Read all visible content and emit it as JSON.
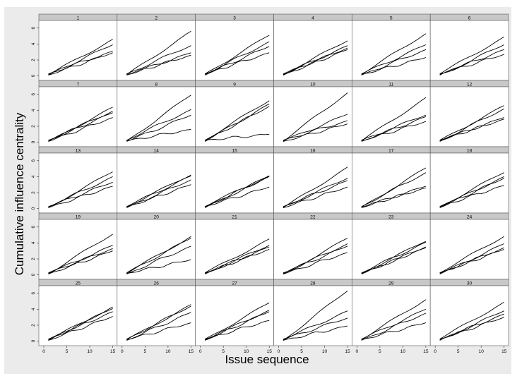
{
  "chart_data": {
    "type": "line",
    "layout": "small-multiples",
    "xlabel": "Issue sequence",
    "ylabel": "Cumulative influence centrality",
    "x": [
      1,
      2,
      3,
      4,
      5,
      6,
      7,
      8,
      9,
      10,
      11,
      12,
      13,
      14,
      15
    ],
    "xticks": [
      0,
      5,
      10,
      15
    ],
    "yticks": [
      0,
      2,
      4,
      6
    ],
    "xlim": [
      0,
      15.5
    ],
    "ylim": [
      -0.3,
      6.6
    ],
    "grid": false,
    "series_per_panel": 4,
    "panels": [
      {
        "label": "1",
        "series": [
          {
            "end": 4.6
          },
          {
            "end": 3.9
          },
          {
            "end": 3.1
          },
          {
            "end": 2.9
          }
        ]
      },
      {
        "label": "2",
        "series": [
          {
            "end": 5.6
          },
          {
            "end": 3.8
          },
          {
            "end": 2.9
          },
          {
            "end": 2.6
          }
        ]
      },
      {
        "label": "3",
        "series": [
          {
            "end": 5.1
          },
          {
            "end": 4.3
          },
          {
            "end": 3.7
          },
          {
            "end": 2.9
          }
        ]
      },
      {
        "label": "4",
        "series": [
          {
            "end": 4.4
          },
          {
            "end": 3.8
          },
          {
            "end": 3.5
          },
          {
            "end": 3.3
          }
        ]
      },
      {
        "label": "5",
        "series": [
          {
            "end": 5.3
          },
          {
            "end": 3.9
          },
          {
            "end": 3.3
          },
          {
            "end": 2.3
          }
        ]
      },
      {
        "label": "6",
        "series": [
          {
            "end": 4.9
          },
          {
            "end": 3.9
          },
          {
            "end": 3.3
          },
          {
            "end": 2.7
          }
        ]
      },
      {
        "label": "7",
        "series": [
          {
            "end": 4.4
          },
          {
            "end": 3.9
          },
          {
            "end": 3.7
          },
          {
            "end": 3.1
          }
        ]
      },
      {
        "label": "8",
        "series": [
          {
            "end": 5.9
          },
          {
            "end": 4.1
          },
          {
            "end": 3.4
          },
          {
            "end": 1.6
          }
        ]
      },
      {
        "label": "9",
        "series": [
          {
            "end": 5.2
          },
          {
            "end": 4.8
          },
          {
            "end": 4.5
          },
          {
            "end": 1.0
          }
        ]
      },
      {
        "label": "10",
        "series": [
          {
            "end": 6.2
          },
          {
            "end": 3.5
          },
          {
            "end": 2.7
          },
          {
            "end": 2.3
          }
        ]
      },
      {
        "label": "11",
        "series": [
          {
            "end": 5.6
          },
          {
            "end": 3.4
          },
          {
            "end": 3.2
          },
          {
            "end": 2.6
          }
        ]
      },
      {
        "label": "12",
        "series": [
          {
            "end": 4.6
          },
          {
            "end": 4.2
          },
          {
            "end": 3.1
          },
          {
            "end": 2.9
          }
        ]
      },
      {
        "label": "13",
        "series": [
          {
            "end": 4.6
          },
          {
            "end": 4.0
          },
          {
            "end": 3.3
          },
          {
            "end": 2.8
          }
        ]
      },
      {
        "label": "14",
        "series": [
          {
            "end": 4.2
          },
          {
            "end": 4.1
          },
          {
            "end": 3.6
          },
          {
            "end": 3.0
          }
        ]
      },
      {
        "label": "15",
        "series": [
          {
            "end": 4.1
          },
          {
            "end": 4.1
          },
          {
            "end": 4.0
          },
          {
            "end": 2.7
          }
        ]
      },
      {
        "label": "16",
        "series": [
          {
            "end": 5.2
          },
          {
            "end": 3.8
          },
          {
            "end": 3.5
          },
          {
            "end": 2.7
          }
        ]
      },
      {
        "label": "17",
        "series": [
          {
            "end": 5.1
          },
          {
            "end": 4.5
          },
          {
            "end": 2.8
          },
          {
            "end": 2.6
          }
        ]
      },
      {
        "label": "18",
        "series": [
          {
            "end": 4.5
          },
          {
            "end": 4.0
          },
          {
            "end": 3.8
          },
          {
            "end": 2.9
          }
        ]
      },
      {
        "label": "19",
        "series": [
          {
            "end": 5.1
          },
          {
            "end": 3.7
          },
          {
            "end": 3.3
          },
          {
            "end": 3.0
          }
        ]
      },
      {
        "label": "20",
        "series": [
          {
            "end": 4.8
          },
          {
            "end": 4.6
          },
          {
            "end": 3.6
          },
          {
            "end": 1.9
          }
        ]
      },
      {
        "label": "21",
        "series": [
          {
            "end": 4.5
          },
          {
            "end": 3.7
          },
          {
            "end": 3.5
          },
          {
            "end": 3.2
          }
        ]
      },
      {
        "label": "22",
        "series": [
          {
            "end": 4.6
          },
          {
            "end": 3.9
          },
          {
            "end": 3.6
          },
          {
            "end": 2.8
          }
        ]
      },
      {
        "label": "23",
        "series": [
          {
            "end": 4.2
          },
          {
            "end": 4.1
          },
          {
            "end": 3.5
          },
          {
            "end": 3.4
          }
        ]
      },
      {
        "label": "24",
        "series": [
          {
            "end": 4.8
          },
          {
            "end": 3.9
          },
          {
            "end": 3.4
          },
          {
            "end": 3.2
          }
        ]
      },
      {
        "label": "25",
        "series": [
          {
            "end": 4.3
          },
          {
            "end": 4.1
          },
          {
            "end": 3.7
          },
          {
            "end": 3.1
          }
        ]
      },
      {
        "label": "26",
        "series": [
          {
            "end": 4.6
          },
          {
            "end": 4.4
          },
          {
            "end": 3.6
          },
          {
            "end": 2.3
          }
        ]
      },
      {
        "label": "27",
        "series": [
          {
            "end": 4.8
          },
          {
            "end": 3.9
          },
          {
            "end": 3.7
          },
          {
            "end": 2.6
          }
        ]
      },
      {
        "label": "28",
        "series": [
          {
            "end": 6.3
          },
          {
            "end": 3.8
          },
          {
            "end": 2.9
          },
          {
            "end": 1.9
          }
        ]
      },
      {
        "label": "29",
        "series": [
          {
            "end": 5.2
          },
          {
            "end": 4.0
          },
          {
            "end": 3.5
          },
          {
            "end": 2.3
          }
        ]
      },
      {
        "label": "30",
        "series": [
          {
            "end": 4.9
          },
          {
            "end": 3.8
          },
          {
            "end": 3.4
          },
          {
            "end": 3.0
          }
        ]
      }
    ]
  }
}
